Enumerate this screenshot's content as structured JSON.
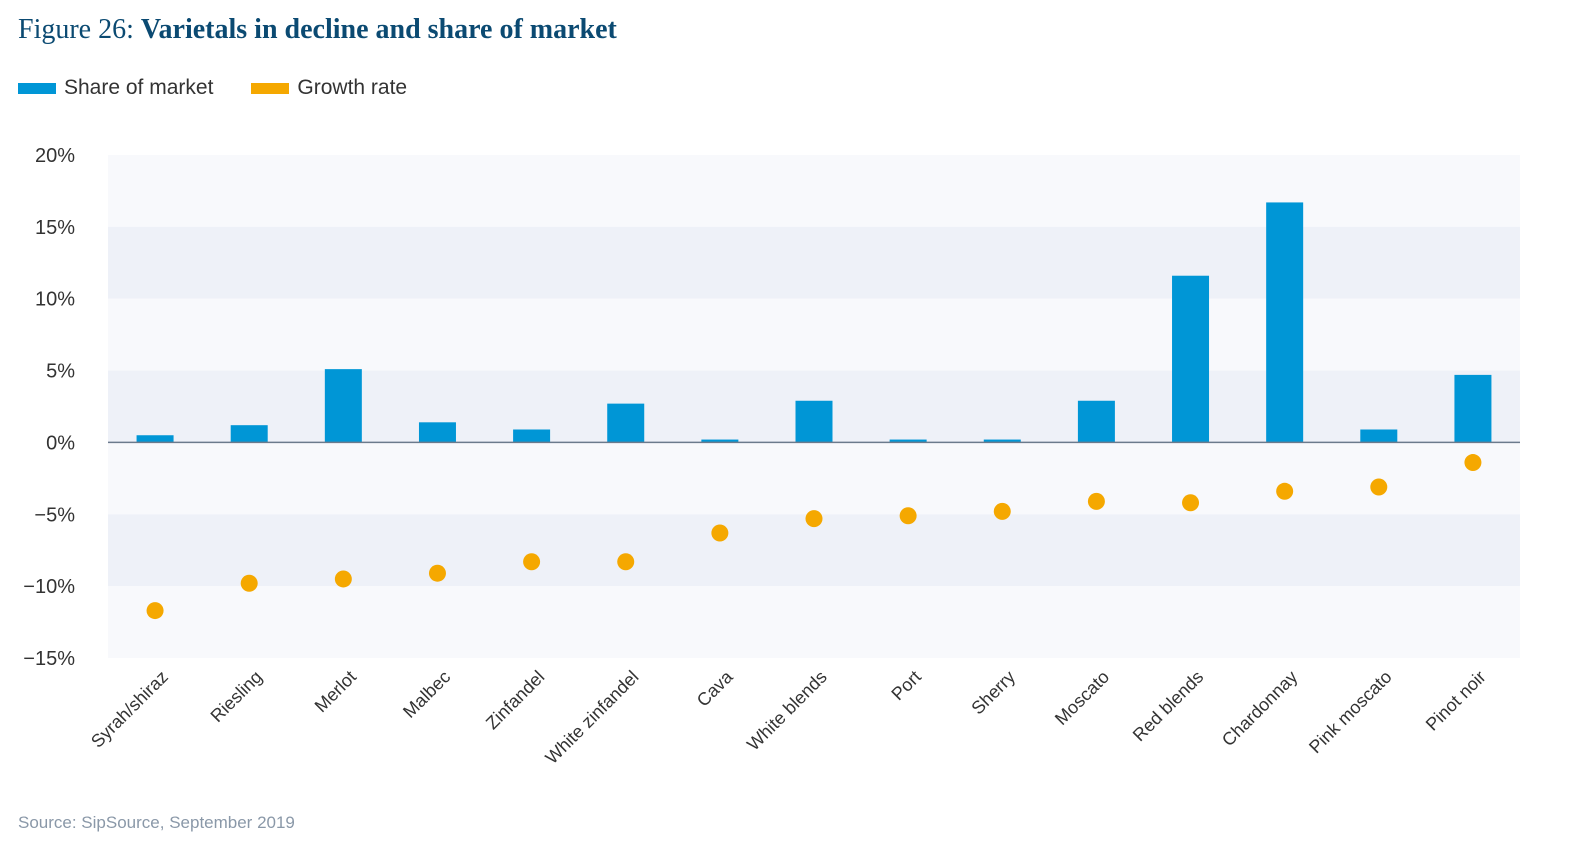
{
  "title_prefix": "Figure 26: ",
  "title_main": "Varietals in decline and share of market",
  "source": "Source: SipSource, September 2019",
  "colors": {
    "share": "#0096d6",
    "growth": "#f5a800",
    "title": "#0b4a72",
    "band": "#eef1f8"
  },
  "chart_data": {
    "type": "bar",
    "categories": [
      "Syrah/shiraz",
      "Riesling",
      "Merlot",
      "Malbec",
      "Zinfandel",
      "White zinfandel",
      "Cava",
      "White blends",
      "Port",
      "Sherry",
      "Moscato",
      "Red blends",
      "Chardonnay",
      "Pink moscato",
      "Pinot noir"
    ],
    "series": [
      {
        "name": "Share of market",
        "kind": "bar",
        "values": [
          0.5,
          1.2,
          5.1,
          1.4,
          0.9,
          2.7,
          0.2,
          2.9,
          0.2,
          0.2,
          2.9,
          11.6,
          16.7,
          0.9,
          4.7
        ]
      },
      {
        "name": "Growth rate",
        "kind": "scatter",
        "values": [
          -11.7,
          -9.8,
          -9.5,
          -9.1,
          -8.3,
          -8.3,
          -6.3,
          -5.3,
          -5.1,
          -4.8,
          -4.1,
          -4.2,
          -3.4,
          -3.1,
          -1.4
        ]
      }
    ],
    "ylim": [
      -15,
      20
    ],
    "yticks": [
      20,
      15,
      10,
      5,
      0,
      -5,
      -10,
      -15
    ],
    "ytick_labels": [
      "20%",
      "15%",
      "10%",
      "5%",
      "0%",
      "−5%",
      "−10%",
      "−15%"
    ],
    "legend_position": "top-left",
    "grid": "alternating bands"
  }
}
